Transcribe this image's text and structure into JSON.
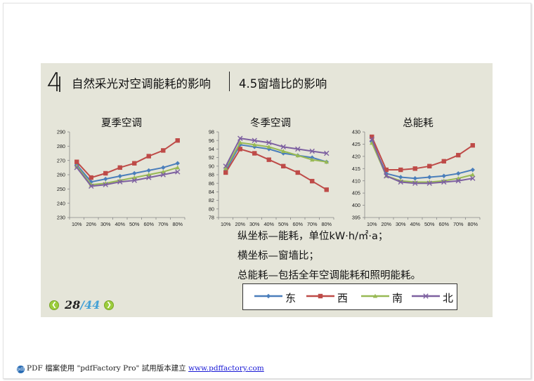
{
  "footer": {
    "text": "PDF 檔案使用 \"pdfFactory Pro\" 試用版本建立",
    "link": "www.pdffactory.com"
  },
  "slide": {
    "number": "4",
    "title": "自然采光对空调能耗的影响",
    "subtitle": "4.5窗墙比的影响",
    "notes": [
      "纵坐标—能耗，单位kW·h/㎡·a；",
      "横坐标—窗墙比；",
      "总能耗—包括全年空调能耗和照明能耗。"
    ],
    "pager": {
      "current": "28",
      "separator": "/",
      "total": "44"
    }
  },
  "legend": [
    {
      "label": "东",
      "color": "#4a7ebb",
      "marker": "diamond"
    },
    {
      "label": "西",
      "color": "#be4b48",
      "marker": "square"
    },
    {
      "label": "南",
      "color": "#98b954",
      "marker": "triangle"
    },
    {
      "label": "北",
      "color": "#7d60a0",
      "marker": "x"
    }
  ],
  "chart_data": [
    {
      "type": "line",
      "title": "夏季空调",
      "x": [
        "10%",
        "20%",
        "30%",
        "40%",
        "50%",
        "60%",
        "70%",
        "80%"
      ],
      "yticks": [
        230,
        240,
        250,
        260,
        270,
        280,
        290
      ],
      "ylim": [
        230,
        290
      ],
      "grid": false,
      "legend_position": "bottom",
      "series": [
        {
          "name": "东",
          "values": [
            267,
            255,
            257,
            259,
            261,
            263,
            265,
            268
          ]
        },
        {
          "name": "西",
          "values": [
            269,
            258,
            261,
            265,
            268,
            273,
            277,
            284
          ]
        },
        {
          "name": "南",
          "values": [
            266,
            253,
            254,
            256,
            258,
            260,
            262,
            265
          ]
        },
        {
          "name": "北",
          "values": [
            265,
            252,
            253,
            255,
            256,
            258,
            260,
            262
          ]
        }
      ]
    },
    {
      "type": "line",
      "title": "冬季空调",
      "x": [
        "10%",
        "20%",
        "30%",
        "40%",
        "50%",
        "60%",
        "70%",
        "80%"
      ],
      "yticks": [
        78,
        80,
        82,
        84,
        86,
        88,
        90,
        92,
        94,
        96,
        98
      ],
      "ylim": [
        78,
        98
      ],
      "grid": false,
      "legend_position": "bottom",
      "series": [
        {
          "name": "东",
          "values": [
            89,
            95,
            94.5,
            94,
            93,
            92.5,
            92,
            91
          ]
        },
        {
          "name": "西",
          "values": [
            88.5,
            94,
            93,
            91.5,
            90,
            88.5,
            86.5,
            84.5
          ]
        },
        {
          "name": "南",
          "values": [
            89.5,
            95.5,
            95,
            94.5,
            93.5,
            92.5,
            91.5,
            91
          ]
        },
        {
          "name": "北",
          "values": [
            90,
            96.5,
            96,
            95.5,
            94.5,
            94,
            93.5,
            93
          ]
        }
      ]
    },
    {
      "type": "line",
      "title": "总能耗",
      "x": [
        "10%",
        "20%",
        "30%",
        "40%",
        "50%",
        "60%",
        "70%",
        "80%"
      ],
      "yticks": [
        395,
        400,
        405,
        410,
        415,
        420,
        425,
        430
      ],
      "ylim": [
        395,
        430
      ],
      "grid": false,
      "legend_position": "bottom",
      "series": [
        {
          "name": "东",
          "values": [
            426,
            413,
            411.5,
            411,
            411.5,
            412,
            413,
            414.5
          ]
        },
        {
          "name": "西",
          "values": [
            428,
            414.5,
            414.5,
            415,
            416,
            418,
            420.5,
            424.5
          ]
        },
        {
          "name": "南",
          "values": [
            425.5,
            412,
            410,
            409.5,
            409.5,
            410,
            411,
            412.5
          ]
        },
        {
          "name": "北",
          "values": [
            427,
            412,
            409.5,
            409,
            409,
            409.5,
            410,
            411
          ]
        }
      ]
    }
  ]
}
